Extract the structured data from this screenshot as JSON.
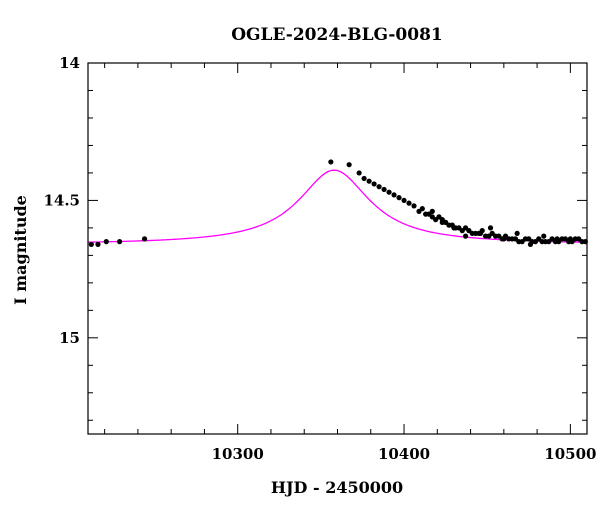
{
  "chart_data": {
    "type": "scatter",
    "title": "OGLE-2024-BLG-0081",
    "xlabel": "HJD - 2450000",
    "ylabel": "I magnitude",
    "xlim": [
      10210,
      10510
    ],
    "ylim": [
      15.35,
      14.0
    ],
    "y_inverted": true,
    "grid": false,
    "x_major_ticks": [
      10300,
      10400,
      10500
    ],
    "x_tick_labels": [
      "10300",
      "10400",
      "10500"
    ],
    "x_minor_step": 20,
    "y_major_ticks": [
      14.0,
      14.5,
      15.0
    ],
    "y_tick_labels": [
      "14",
      "14.5",
      "15"
    ],
    "y_minor_step": 0.1,
    "model_color": "#ff00ff",
    "point_color": "#000000",
    "model": {
      "baseline": 14.66,
      "amplitude": 0.27,
      "t0": 10358,
      "width": 26
    },
    "series": [
      {
        "x": [
          10212,
          10216,
          10221,
          10229,
          10244,
          10356,
          10367,
          10373,
          10376,
          10379,
          10382,
          10385,
          10388,
          10391,
          10394,
          10397,
          10400,
          10403,
          10406,
          10409,
          10411,
          10413,
          10415,
          10417,
          10419,
          10421,
          10423,
          10425,
          10427,
          10429,
          10431,
          10433,
          10435,
          10437,
          10439,
          10441,
          10443,
          10445,
          10447,
          10449,
          10451,
          10453,
          10455,
          10457,
          10459,
          10461,
          10463,
          10465,
          10467,
          10469,
          10471,
          10473,
          10475,
          10477,
          10479,
          10481,
          10483,
          10485,
          10487,
          10489,
          10491,
          10493,
          10495,
          10497,
          10499,
          10501,
          10503,
          10505,
          10507,
          10509,
          10417,
          10423,
          10430,
          10437,
          10446,
          10452,
          10460,
          10468,
          10476,
          10484,
          10492,
          10500
        ],
        "y": [
          14.66,
          14.66,
          14.65,
          14.65,
          14.64,
          14.36,
          14.37,
          14.4,
          14.42,
          14.43,
          14.44,
          14.45,
          14.46,
          14.47,
          14.48,
          14.49,
          14.5,
          14.51,
          14.52,
          14.54,
          14.53,
          14.55,
          14.55,
          14.56,
          14.57,
          14.56,
          14.58,
          14.58,
          14.59,
          14.59,
          14.6,
          14.6,
          14.61,
          14.6,
          14.61,
          14.62,
          14.62,
          14.62,
          14.61,
          14.63,
          14.63,
          14.62,
          14.63,
          14.63,
          14.64,
          14.63,
          14.64,
          14.64,
          14.64,
          14.65,
          14.65,
          14.64,
          14.64,
          14.65,
          14.65,
          14.64,
          14.65,
          14.65,
          14.65,
          14.64,
          14.65,
          14.65,
          14.64,
          14.64,
          14.65,
          14.65,
          14.64,
          14.64,
          14.65,
          14.65,
          14.54,
          14.57,
          14.6,
          14.63,
          14.62,
          14.6,
          14.64,
          14.62,
          14.66,
          14.63,
          14.64,
          14.64
        ]
      }
    ]
  }
}
